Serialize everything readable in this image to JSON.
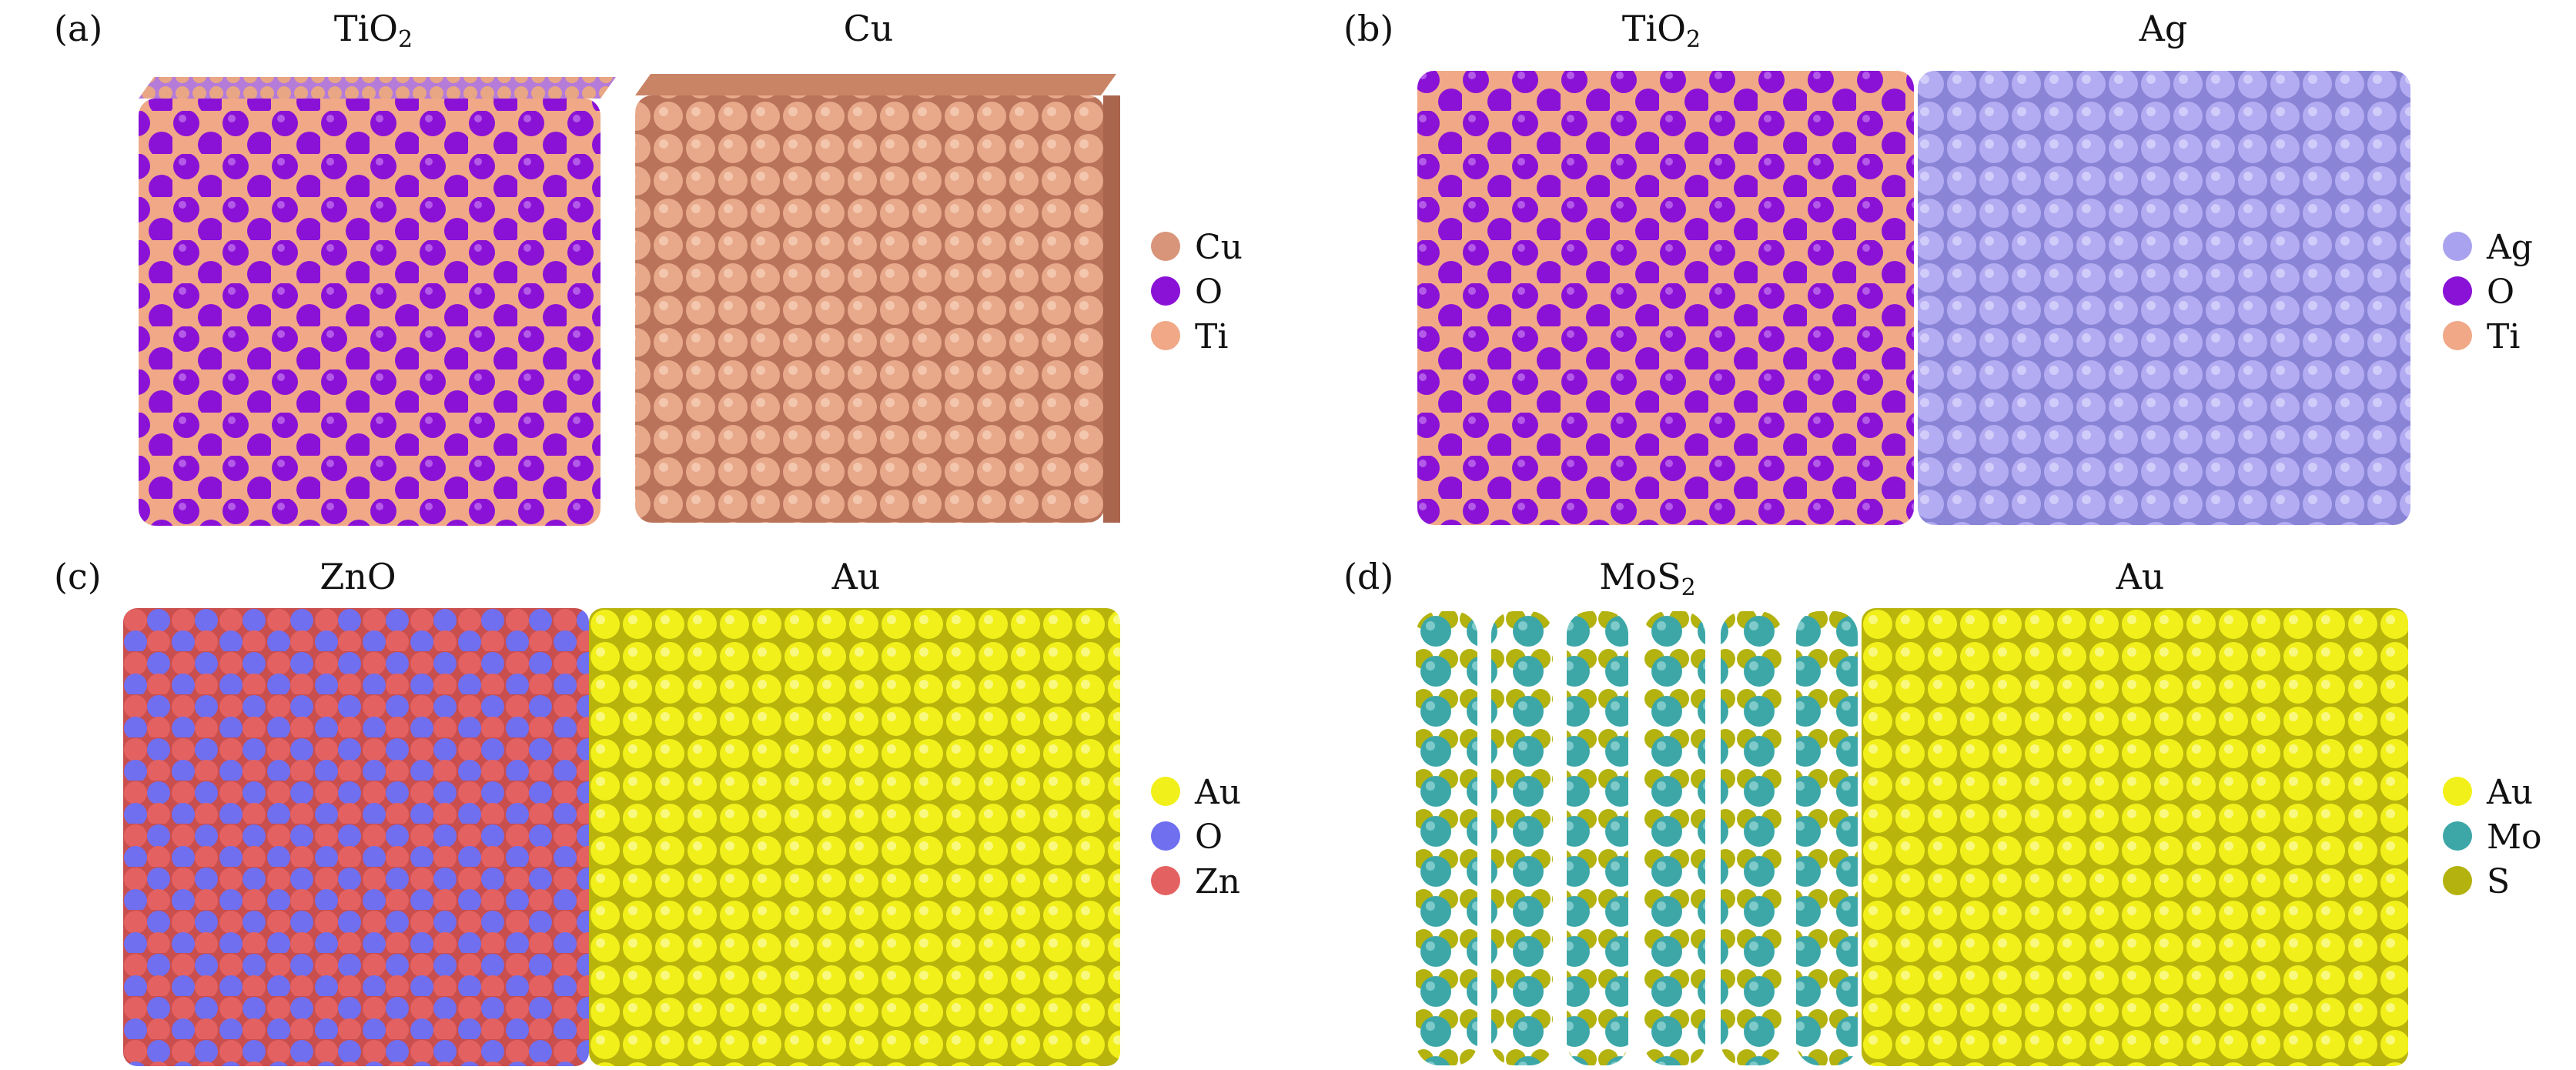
{
  "panels": [
    {
      "label": "(a)",
      "left_title": {
        "main": "TiO",
        "sub": "2"
      },
      "right_title": "Cu",
      "legend": [
        {
          "name": "Cu",
          "color": "#d9957a"
        },
        {
          "name": "O",
          "color": "#8a12d6"
        },
        {
          "name": "Ti",
          "color": "#f0a887"
        }
      ]
    },
    {
      "label": "(b)",
      "left_title": {
        "main": "TiO",
        "sub": "2"
      },
      "right_title": "Ag",
      "legend": [
        {
          "name": "Ag",
          "color": "#a9a2ee"
        },
        {
          "name": "O",
          "color": "#8a12d6"
        },
        {
          "name": "Ti",
          "color": "#f0a887"
        }
      ]
    },
    {
      "label": "(c)",
      "left_title": {
        "main": "ZnO",
        "sub": ""
      },
      "right_title": "Au",
      "legend": [
        {
          "name": "Au",
          "color": "#f2f01a"
        },
        {
          "name": "O",
          "color": "#6f6ff0"
        },
        {
          "name": "Zn",
          "color": "#e46161"
        }
      ]
    },
    {
      "label": "(d)",
      "left_title": {
        "main": "MoS",
        "sub": "2"
      },
      "right_title": "Au",
      "legend": [
        {
          "name": "Au",
          "color": "#f2f01a"
        },
        {
          "name": "Mo",
          "color": "#3da7a7"
        },
        {
          "name": "S",
          "color": "#b3b20f"
        }
      ]
    }
  ]
}
